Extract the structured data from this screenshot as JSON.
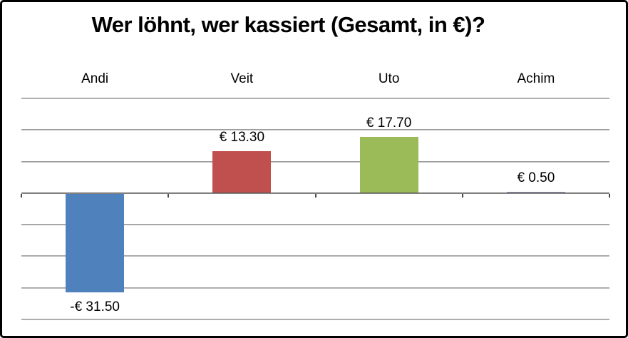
{
  "chart_data": {
    "type": "bar",
    "title": "Wer löhnt, wer kassiert (Gesamt, in €)?",
    "categories": [
      "Andi",
      "Veit",
      "Uto",
      "Achim"
    ],
    "values": [
      -31.5,
      13.3,
      17.7,
      0.5
    ],
    "data_labels": [
      "-€ 31.50",
      "€ 13.30",
      "€ 17.70",
      "€ 0.50"
    ],
    "bar_colors": [
      "#4f81bd",
      "#c0504d",
      "#9bbb59",
      "#9a8fb0"
    ],
    "xlabel": "",
    "ylabel": "",
    "ylim": [
      -40,
      30
    ],
    "gridline_step": 10,
    "grid": true,
    "legend": "none",
    "category_label_position": "top",
    "colors": {
      "gridline_top": "#8a8a8a",
      "gridline_bottom": "#cfcfcf",
      "axis_line": "#4a4a4a",
      "axis_line_bottom": "#9a9a9a",
      "frame_border": "#000000",
      "background": "#ffffff",
      "text": "#000000"
    }
  }
}
